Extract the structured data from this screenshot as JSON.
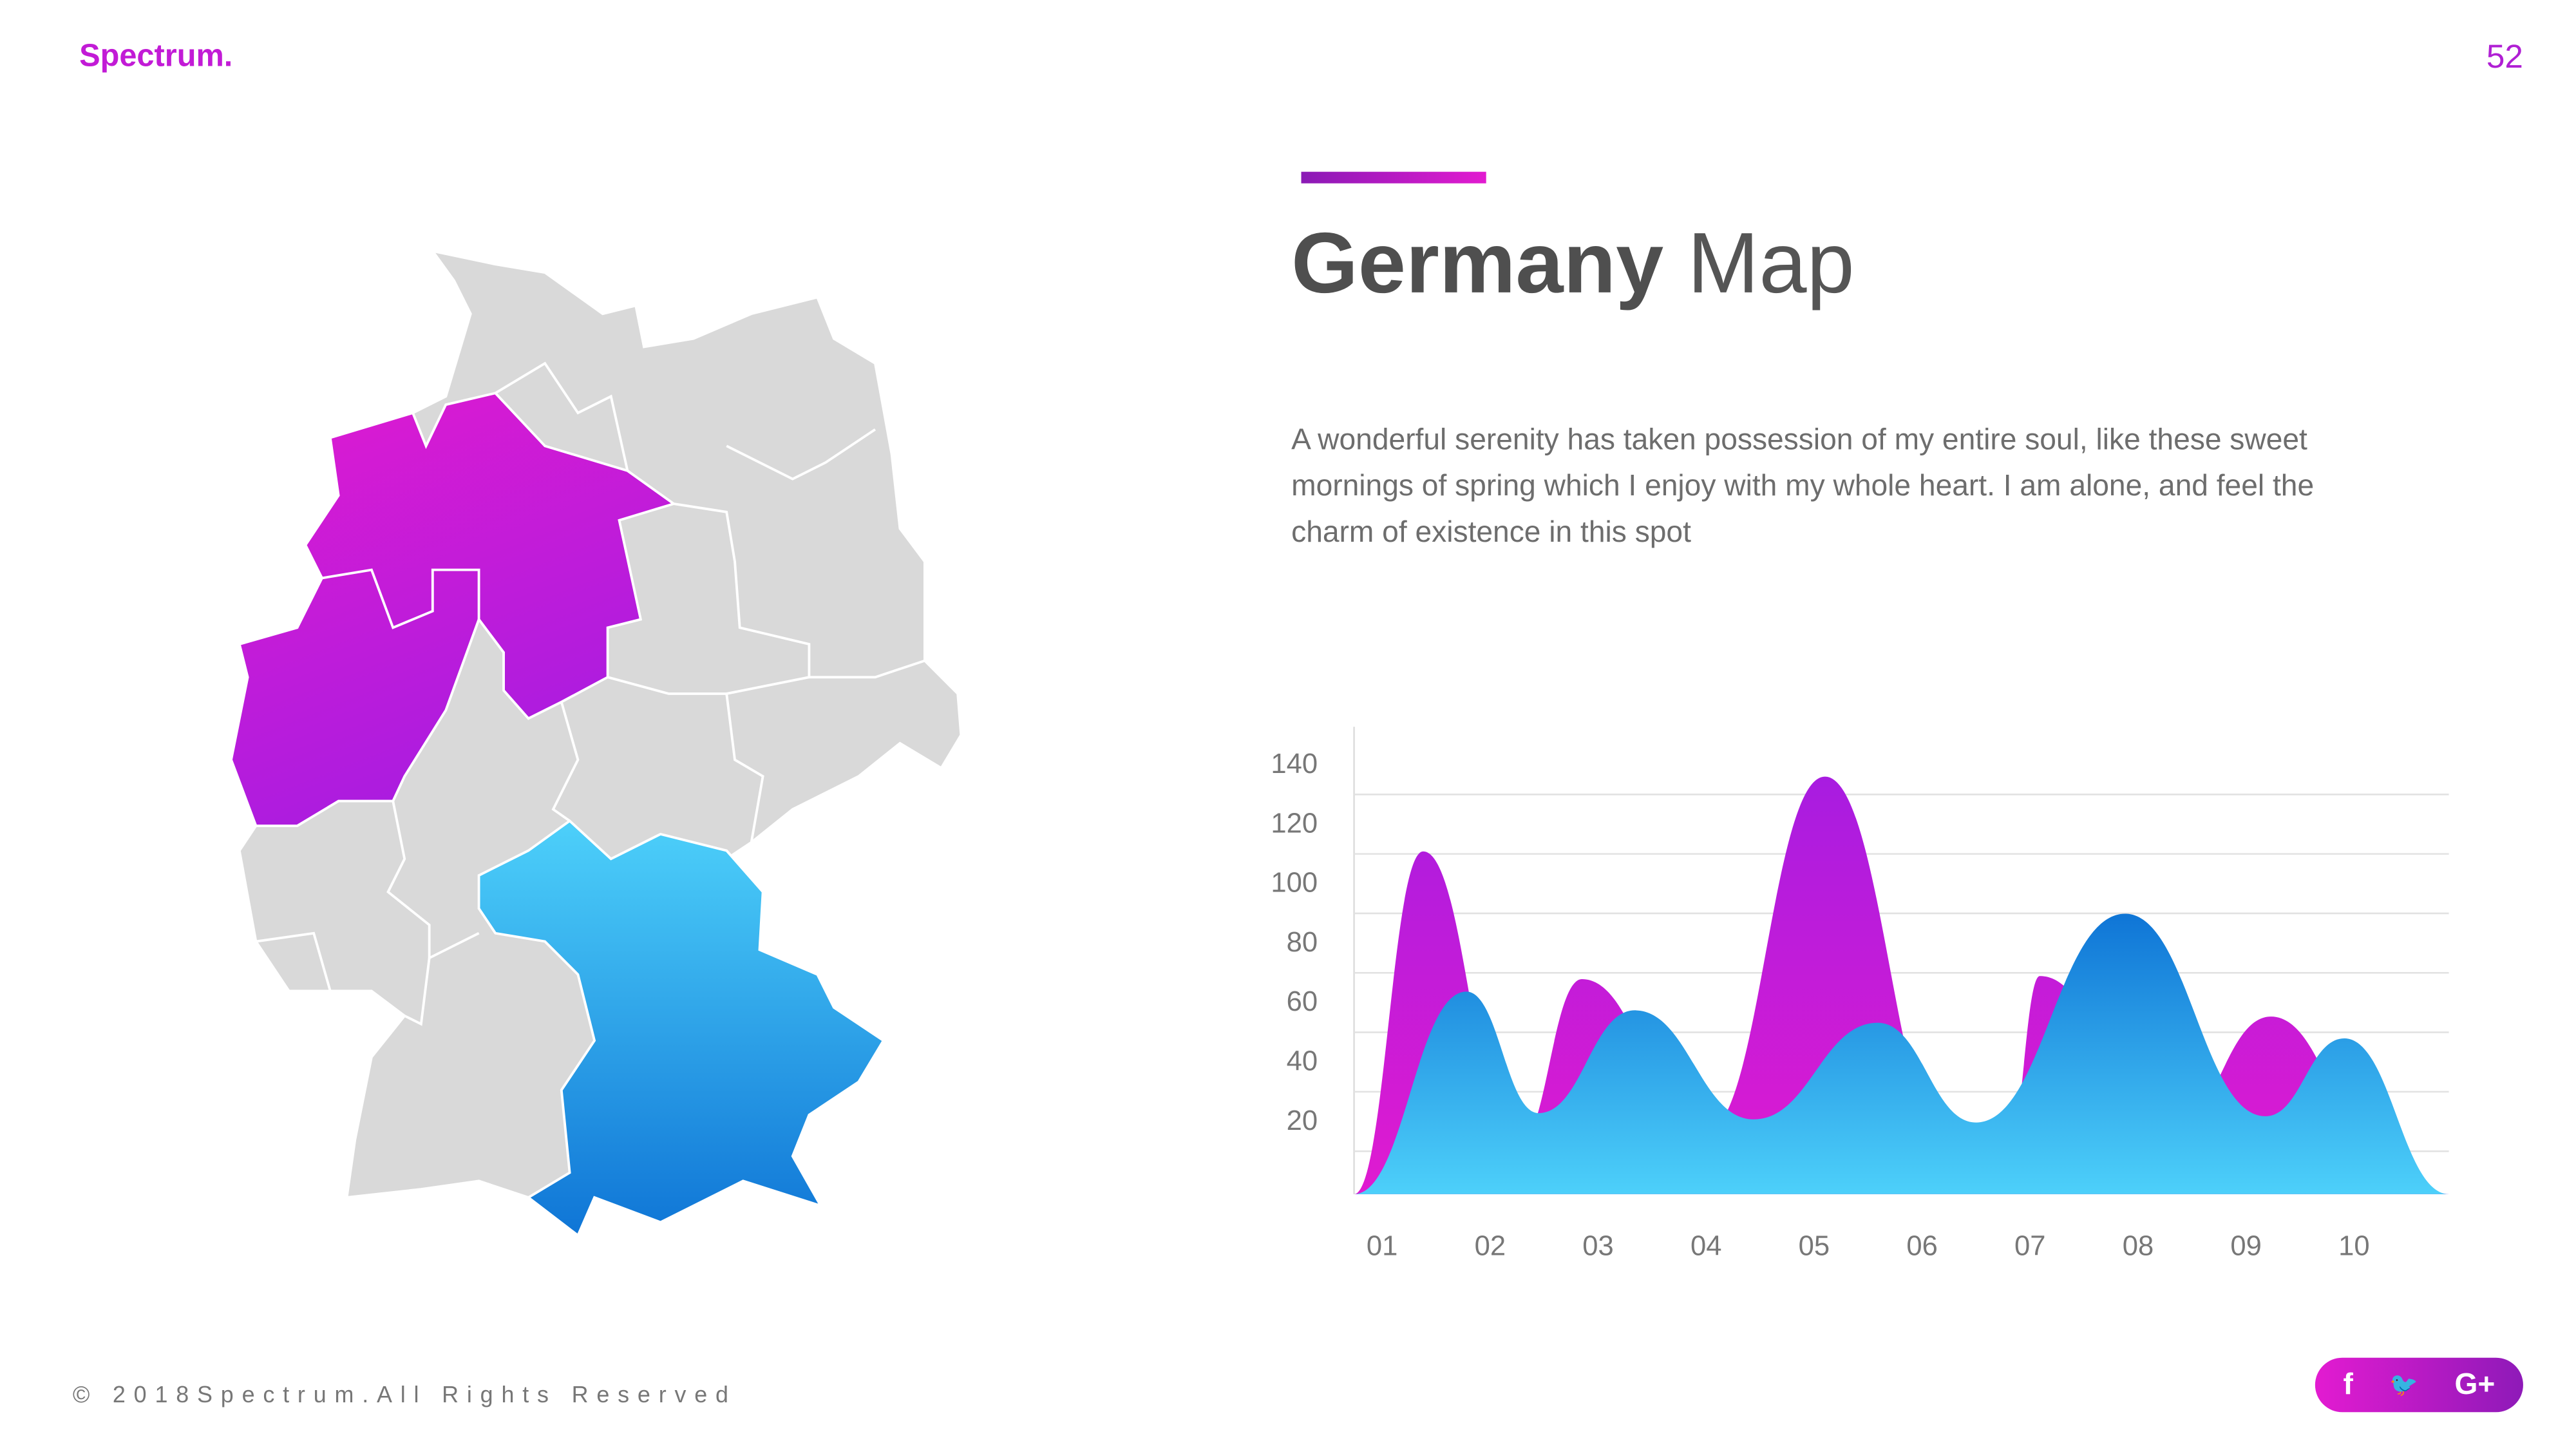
{
  "header": {
    "brand": "Spectrum.",
    "page_number": "52"
  },
  "title": {
    "bold": "Germany",
    "light": "Map"
  },
  "description": "A wonderful serenity has taken possession of my entire soul, like these sweet mornings of spring which I enjoy with my whole heart. I am alone, and feel the charm of existence in this spot",
  "footer": {
    "copyright": "© 2018Spectrum.All Rights Reserved"
  },
  "social": [
    {
      "icon": "facebook-icon",
      "glyph": "f"
    },
    {
      "icon": "twitter-icon",
      "glyph": "🐦"
    },
    {
      "icon": "google-plus-icon",
      "glyph": "G+"
    }
  ],
  "colors": {
    "brand": "#c21bd6",
    "purple_top": "#a81ce0",
    "purple_bottom": "#e01bd0",
    "blue_top": "#0f75d6",
    "blue_bottom": "#4dd0fa",
    "map_gray": "#d9d9d9"
  },
  "map": {
    "highlighted_purple": [
      "Lower Saxony",
      "North Rhine-Westphalia"
    ],
    "highlighted_blue": [
      "Bavaria"
    ]
  },
  "chart_data": {
    "type": "area",
    "categories": [
      "01",
      "02",
      "03",
      "04",
      "05",
      "06",
      "07",
      "08",
      "09",
      "10"
    ],
    "y_ticks": [
      20,
      40,
      60,
      80,
      100,
      120,
      140
    ],
    "ylim": [
      0,
      150
    ],
    "grid": true,
    "series": [
      {
        "color": "purple",
        "points": [
          [
            0.74,
            0
          ],
          [
            1.38,
            110
          ],
          [
            2.25,
            15
          ],
          [
            2.85,
            69
          ],
          [
            4.0,
            20
          ],
          [
            5.1,
            134
          ],
          [
            6.3,
            12
          ],
          [
            6.8,
            15
          ],
          [
            7.09,
            70
          ],
          [
            8.3,
            20
          ],
          [
            9.23,
            57
          ],
          [
            10.3,
            15
          ],
          [
            10.88,
            0
          ]
        ]
      },
      {
        "color": "blue",
        "points": [
          [
            0.74,
            0
          ],
          [
            1.78,
            65
          ],
          [
            2.45,
            26
          ],
          [
            3.34,
            59
          ],
          [
            4.44,
            24
          ],
          [
            5.59,
            55
          ],
          [
            6.5,
            23
          ],
          [
            7.88,
            90
          ],
          [
            9.18,
            25
          ],
          [
            9.91,
            50
          ],
          [
            10.88,
            0
          ]
        ]
      }
    ]
  }
}
